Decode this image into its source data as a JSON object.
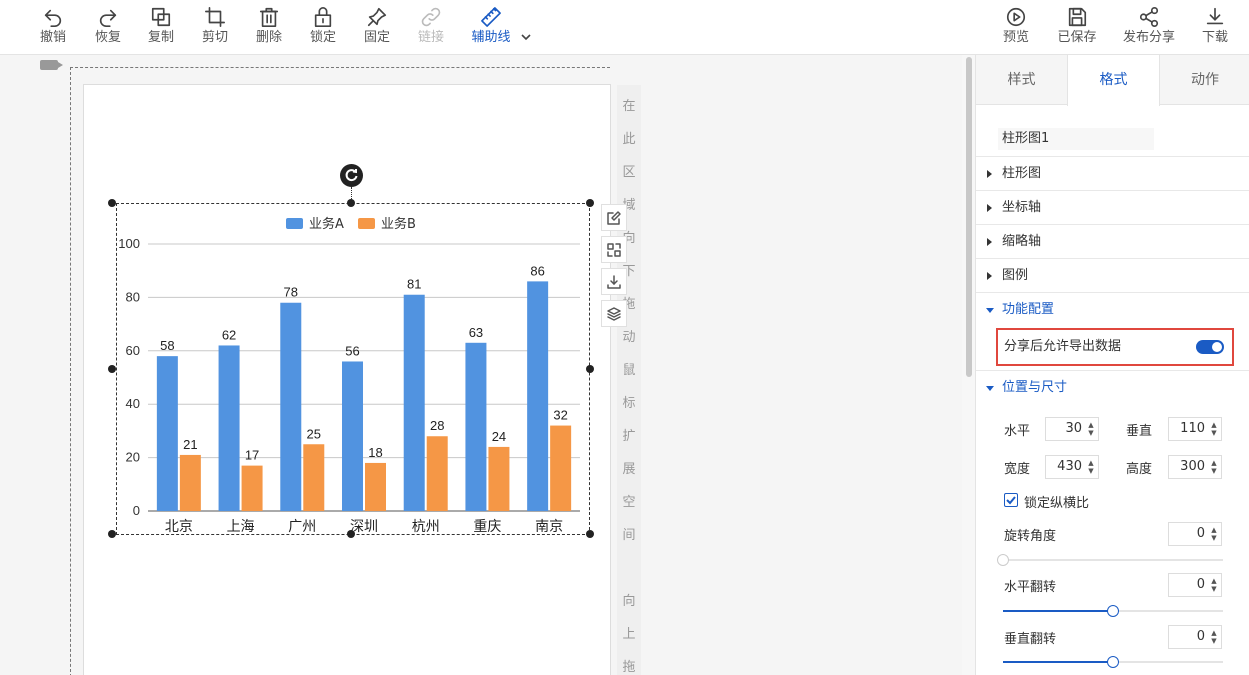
{
  "toolbar": {
    "left": [
      {
        "id": "undo",
        "label": "撤销",
        "icon": "undo-icon"
      },
      {
        "id": "redo",
        "label": "恢复",
        "icon": "redo-icon"
      },
      {
        "id": "copy",
        "label": "复制",
        "icon": "copy-icon"
      },
      {
        "id": "crop",
        "label": "剪切",
        "icon": "crop-icon"
      },
      {
        "id": "delete",
        "label": "删除",
        "icon": "trash-icon"
      },
      {
        "id": "lock",
        "label": "锁定",
        "icon": "lock-icon"
      },
      {
        "id": "pin",
        "label": "固定",
        "icon": "pin-icon"
      },
      {
        "id": "link",
        "label": "链接",
        "icon": "link-icon",
        "disabled": true
      },
      {
        "id": "guides",
        "label": "辅助线",
        "icon": "ruler-icon",
        "active": true
      }
    ],
    "right": [
      {
        "id": "preview",
        "label": "预览",
        "icon": "play-icon"
      },
      {
        "id": "saved",
        "label": "已保存",
        "icon": "save-icon"
      },
      {
        "id": "share",
        "label": "发布分享",
        "icon": "share-icon"
      },
      {
        "id": "download",
        "label": "下载",
        "icon": "download-icon"
      }
    ]
  },
  "canvas": {
    "drop_hint_top": [
      "在",
      "此",
      "区",
      "域",
      "向",
      "下",
      "拖",
      "动",
      "鼠",
      "标",
      "扩",
      "展",
      "空",
      "间"
    ],
    "drop_hint_bottom": [
      "向",
      "上",
      "拖"
    ]
  },
  "chart_data": {
    "type": "bar",
    "categories": [
      "北京",
      "上海",
      "广州",
      "深圳",
      "杭州",
      "重庆",
      "南京"
    ],
    "series": [
      {
        "name": "业务A",
        "values": [
          58,
          62,
          78,
          56,
          81,
          63,
          86
        ],
        "color": "#5193e0"
      },
      {
        "name": "业务B",
        "values": [
          21,
          17,
          25,
          18,
          28,
          24,
          32
        ],
        "color": "#f59746"
      }
    ],
    "ylim": [
      0,
      100
    ],
    "yticks": [
      0,
      20,
      40,
      60,
      80,
      100
    ],
    "grid": true,
    "legend": "top-center",
    "data_labels": true
  },
  "panel": {
    "tabs": [
      "样式",
      "格式",
      "动作"
    ],
    "active_tab": "格式",
    "component_name": "柱形图1",
    "sections": {
      "bar": "柱形图",
      "axis": "坐标轴",
      "thumb_axis": "缩略轴",
      "legend": "图例",
      "func": "功能配置",
      "pos": "位置与尺寸"
    },
    "export_label": "分享后允许导出数据",
    "export_enabled": true,
    "position": {
      "h_label": "水平",
      "h_value": "30",
      "v_label": "垂直",
      "v_value": "110",
      "w_label": "宽度",
      "w_value": "430",
      "hgt_label": "高度",
      "hgt_value": "300"
    },
    "lock_ratio_label": "锁定纵横比",
    "lock_ratio": true,
    "rotate_label": "旋转角度",
    "rotate_value": "0",
    "rotate_level": 0,
    "flip_h_label": "水平翻转",
    "flip_h_value": "0",
    "flip_h_level": 0.5,
    "flip_v_label": "垂直翻转",
    "flip_v_value": "0",
    "flip_v_level": 0.5
  },
  "colors": {
    "accent": "#1a5bc4",
    "highlight": "#e0473d",
    "series_a": "#5193e0",
    "series_b": "#f59746"
  }
}
